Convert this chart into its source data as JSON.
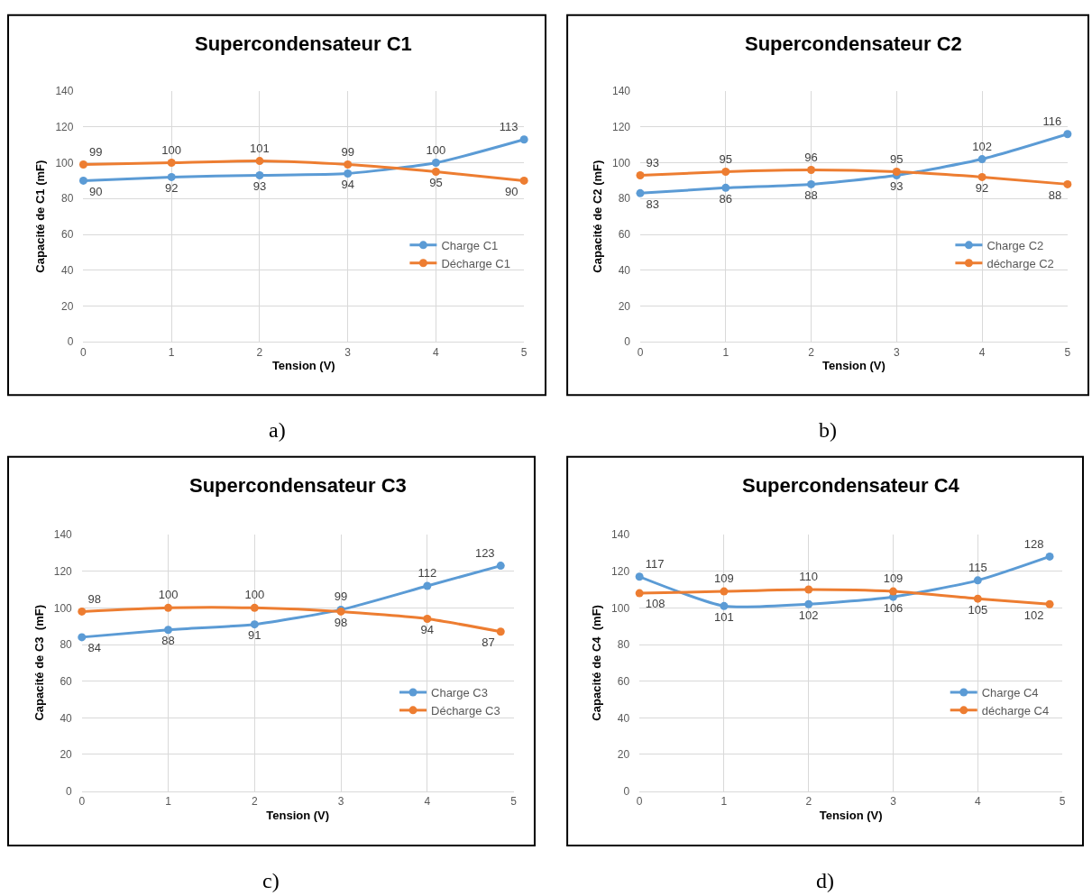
{
  "chart_data": [
    {
      "type": "line",
      "title": "Supercondensateur C1",
      "xlabel": "Tension (V)",
      "ylabel": "Capacité de C1 (mF)",
      "annotations": [
        "a)"
      ],
      "xlim": [
        0,
        5
      ],
      "xticks": [
        0,
        1,
        2,
        3,
        4,
        5
      ],
      "ylim": [
        0,
        140
      ],
      "yticks": [
        0,
        20,
        40,
        60,
        80,
        100,
        120,
        140
      ],
      "grid": true,
      "legend": "right",
      "marker": "circle",
      "data_labels": true,
      "x": [
        0,
        1,
        2,
        3,
        4,
        5
      ],
      "series": [
        {
          "name": "Charge C1",
          "color": "#5b9bd5",
          "values": [
            90,
            92,
            93,
            94,
            100,
            113
          ]
        },
        {
          "name": "Décharge C1",
          "color": "#ed7d31",
          "values": [
            99,
            100,
            101,
            99,
            95,
            90
          ]
        }
      ]
    },
    {
      "type": "line",
      "title": "Supercondensateur C2",
      "xlabel": "Tension (V)",
      "ylabel": "Capacité de C2 (mF)",
      "annotations": [
        "b)"
      ],
      "xlim": [
        0,
        5
      ],
      "xticks": [
        0,
        1,
        2,
        3,
        4,
        5
      ],
      "ylim": [
        0,
        140
      ],
      "yticks": [
        0,
        20,
        40,
        60,
        80,
        100,
        120,
        140
      ],
      "grid": true,
      "legend": "right",
      "marker": "circle",
      "data_labels": true,
      "x": [
        0,
        1,
        2,
        3,
        4,
        5
      ],
      "series": [
        {
          "name": "Charge C2",
          "color": "#5b9bd5",
          "values": [
            83,
            86,
            88,
            93,
            102,
            116
          ]
        },
        {
          "name": "décharge C2",
          "color": "#ed7d31",
          "values": [
            93,
            95,
            96,
            95,
            92,
            88
          ]
        }
      ]
    },
    {
      "type": "line",
      "title": "Supercondensateur C3",
      "xlabel": "Tension (V)",
      "ylabel": "Capacité de C3  (mF)",
      "annotations": [
        "c)"
      ],
      "xlim": [
        0,
        5
      ],
      "xticks": [
        0,
        1,
        2,
        3,
        4,
        5
      ],
      "ylim": [
        0,
        140
      ],
      "yticks": [
        0,
        20,
        40,
        60,
        80,
        100,
        120,
        140
      ],
      "grid": true,
      "legend": "right",
      "marker": "circle",
      "data_labels": true,
      "x": [
        0,
        1,
        2,
        3,
        4,
        4.85
      ],
      "series": [
        {
          "name": "Charge C3",
          "color": "#5b9bd5",
          "values": [
            84,
            88,
            91,
            99,
            112,
            123
          ]
        },
        {
          "name": "Décharge C3",
          "color": "#ed7d31",
          "values": [
            98,
            100,
            100,
            98,
            94,
            87
          ]
        }
      ]
    },
    {
      "type": "line",
      "title": "Supercondensateur C4",
      "xlabel": "Tension (V)",
      "ylabel": "Capacité de C4  (mF)",
      "annotations": [
        "d)"
      ],
      "xlim": [
        0,
        5
      ],
      "xticks": [
        0,
        1,
        2,
        3,
        4,
        5
      ],
      "ylim": [
        0,
        140
      ],
      "yticks": [
        0,
        20,
        40,
        60,
        80,
        100,
        120,
        140
      ],
      "grid": true,
      "legend": "right",
      "marker": "circle",
      "data_labels": true,
      "x": [
        0,
        1,
        2,
        3,
        4,
        4.85
      ],
      "series": [
        {
          "name": "Charge C4",
          "color": "#5b9bd5",
          "values": [
            117,
            101,
            102,
            106,
            115,
            128
          ]
        },
        {
          "name": "décharge C4",
          "color": "#ed7d31",
          "values": [
            108,
            109,
            110,
            109,
            105,
            102
          ]
        }
      ]
    }
  ]
}
